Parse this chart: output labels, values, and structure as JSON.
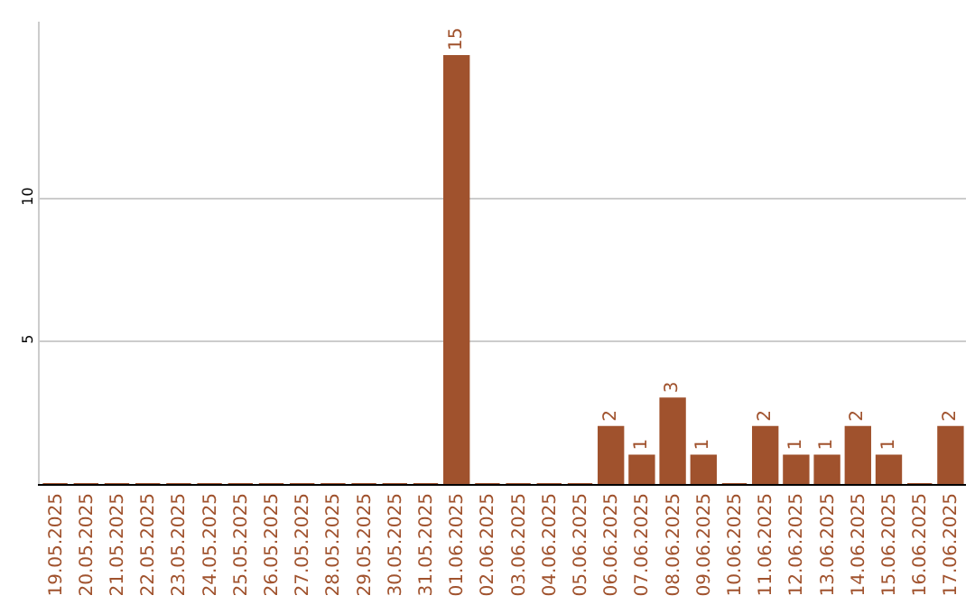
{
  "chart_data": {
    "type": "bar",
    "categories": [
      "19.05.2025",
      "20.05.2025",
      "21.05.2025",
      "22.05.2025",
      "23.05.2025",
      "24.05.2025",
      "25.05.2025",
      "26.05.2025",
      "27.05.2025",
      "28.05.2025",
      "29.05.2025",
      "30.05.2025",
      "31.05.2025",
      "01.06.2025",
      "02.06.2025",
      "03.06.2025",
      "04.06.2025",
      "05.06.2025",
      "06.06.2025",
      "07.06.2025",
      "08.06.2025",
      "09.06.2025",
      "10.06.2025",
      "11.06.2025",
      "12.06.2025",
      "13.06.2025",
      "14.06.2025",
      "15.06.2025",
      "16.06.2025",
      "17.06.2025"
    ],
    "values": [
      0,
      0,
      0,
      0,
      0,
      0,
      0,
      0,
      0,
      0,
      0,
      0,
      0,
      15,
      0,
      0,
      0,
      0,
      2,
      1,
      3,
      1,
      0,
      2,
      1,
      1,
      2,
      1,
      0,
      2
    ],
    "value_labels": [
      null,
      null,
      null,
      null,
      null,
      null,
      null,
      null,
      null,
      null,
      null,
      null,
      null,
      "15",
      null,
      null,
      null,
      null,
      "2",
      "1",
      "3",
      "1",
      null,
      "2",
      "1",
      "1",
      "2",
      "1",
      null,
      "2"
    ],
    "color": "#a0522d",
    "ylim": [
      0,
      16.2
    ],
    "yticks": [
      5,
      10
    ],
    "grid": "y"
  }
}
